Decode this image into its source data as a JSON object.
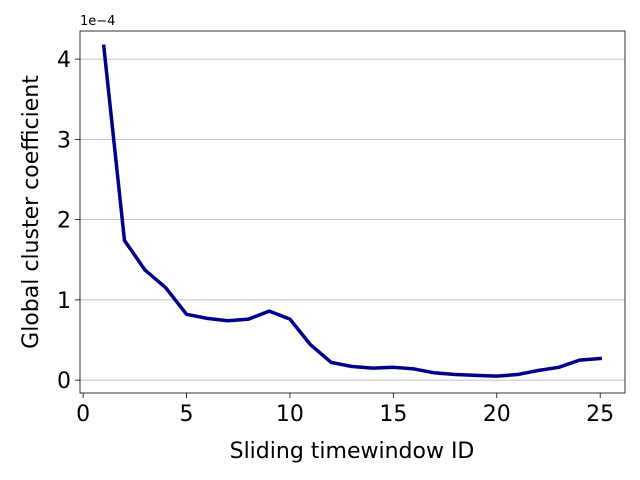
{
  "chart_data": {
    "type": "line",
    "x_label": "Sliding timewindow ID",
    "y_label": "Global cluster coefficient",
    "y_offset_text": "1e−4",
    "x": [
      1,
      2,
      3,
      4,
      5,
      6,
      7,
      8,
      9,
      10,
      11,
      12,
      13,
      14,
      15,
      16,
      17,
      18,
      19,
      20,
      21,
      22,
      23,
      24,
      25
    ],
    "values": [
      4.16,
      1.74,
      1.37,
      1.15,
      0.82,
      0.77,
      0.74,
      0.76,
      0.86,
      0.76,
      0.44,
      0.22,
      0.17,
      0.15,
      0.16,
      0.14,
      0.09,
      0.07,
      0.06,
      0.05,
      0.07,
      0.12,
      0.16,
      0.25,
      0.27
    ],
    "color": "#00008b",
    "xlim": [
      -0.15,
      26.2
    ],
    "ylim": [
      -0.16,
      4.35
    ],
    "xticks": [
      0,
      5,
      10,
      15,
      20,
      25
    ],
    "yticks": [
      0,
      1,
      2,
      3,
      4
    ],
    "grid": true
  }
}
